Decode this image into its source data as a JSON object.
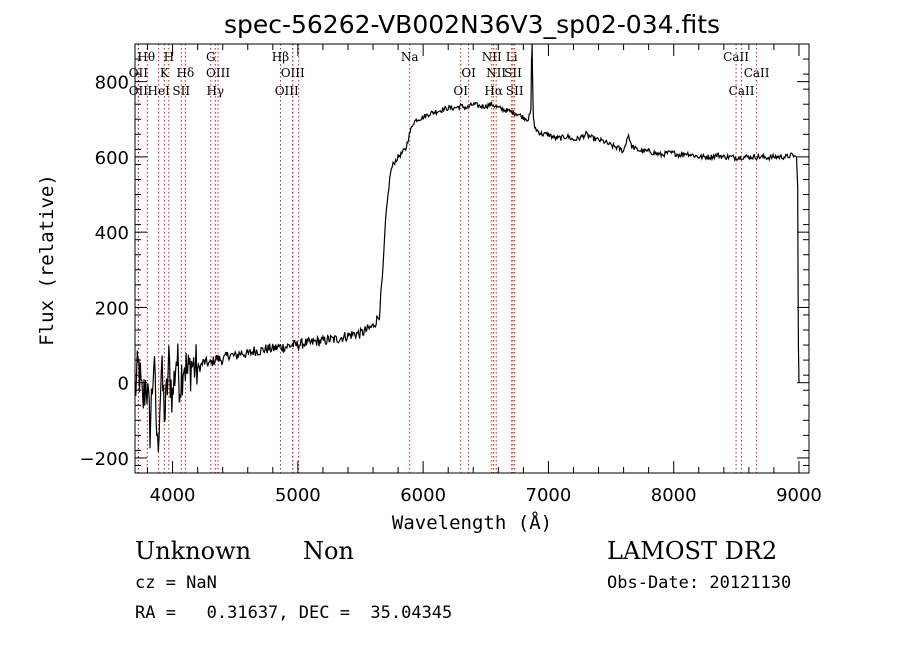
{
  "chart_data": {
    "type": "line",
    "title": "spec-56262-VB002N36V3_sp02-034.fits",
    "xlabel": "Wavelength (Å)",
    "ylabel": "Flux (relative)",
    "xlim": [
      3700,
      9080
    ],
    "ylim": [
      -240,
      900
    ],
    "xticks": [
      4000,
      5000,
      6000,
      7000,
      8000,
      9000
    ],
    "xtick_labels": [
      "4000",
      "5000",
      "6000",
      "7000",
      "8000",
      "9000"
    ],
    "yticks": [
      -200,
      0,
      200,
      400,
      600,
      800
    ],
    "ytick_labels": [
      "−200",
      "0",
      "200",
      "400",
      "600",
      "800"
    ],
    "grid": false,
    "series": [
      {
        "x": [
          3700,
          3730,
          3760,
          3790,
          3820,
          3850,
          3880,
          3910,
          3940,
          3970,
          4000,
          4030,
          4060,
          4090,
          4120,
          4150,
          4200,
          4250,
          4300,
          4350,
          4400,
          4450,
          4500,
          4550,
          4600,
          4650,
          4700,
          4750,
          4800,
          4850,
          4900,
          4950,
          5000,
          5050,
          5100,
          5150,
          5200,
          5250,
          5300,
          5350,
          5400,
          5450,
          5500,
          5550,
          5600,
          5650,
          5680,
          5700,
          5720,
          5740,
          5760,
          5780,
          5800,
          5830,
          5860,
          5890,
          5920,
          5950,
          6000,
          6050,
          6100,
          6150,
          6200,
          6250,
          6300,
          6350,
          6400,
          6450,
          6500,
          6550,
          6600,
          6650,
          6700,
          6750,
          6800,
          6840,
          6860,
          6865,
          6870,
          6875,
          6880,
          6890,
          6910,
          6950,
          7000,
          7050,
          7100,
          7150,
          7200,
          7250,
          7300,
          7350,
          7400,
          7450,
          7500,
          7550,
          7600,
          7620,
          7640,
          7660,
          7700,
          7750,
          7800,
          7850,
          7900,
          7950,
          8000,
          8050,
          8100,
          8150,
          8200,
          8250,
          8300,
          8350,
          8400,
          8450,
          8500,
          8550,
          8600,
          8650,
          8700,
          8750,
          8800,
          8850,
          8900,
          8950,
          8980,
          8990,
          8995,
          9000
        ],
        "y": [
          -20,
          40,
          -60,
          10,
          -120,
          60,
          -180,
          30,
          -90,
          50,
          -40,
          70,
          0,
          60,
          20,
          50,
          35,
          55,
          50,
          65,
          60,
          75,
          70,
          80,
          75,
          85,
          85,
          90,
          90,
          95,
          95,
          100,
          100,
          105,
          105,
          110,
          110,
          115,
          115,
          120,
          125,
          130,
          130,
          140,
          150,
          180,
          300,
          430,
          500,
          560,
          580,
          590,
          600,
          610,
          620,
          660,
          690,
          700,
          705,
          715,
          720,
          725,
          730,
          730,
          735,
          730,
          740,
          735,
          735,
          740,
          730,
          725,
          720,
          715,
          705,
          700,
          720,
          850,
          900,
          780,
          700,
          680,
          670,
          660,
          660,
          650,
          650,
          655,
          645,
          650,
          660,
          650,
          645,
          640,
          630,
          625,
          615,
          640,
          660,
          630,
          620,
          615,
          615,
          610,
          605,
          610,
          610,
          605,
          610,
          605,
          600,
          600,
          600,
          605,
          600,
          600,
          598,
          600,
          600,
          600,
          600,
          598,
          600,
          600,
          600,
          605,
          600,
          520,
          100,
          0
        ]
      }
    ],
    "lines": [
      {
        "name": "Hθ",
        "x": 3798,
        "rows": [
          1
        ],
        "dx": -1
      },
      {
        "name": "OII",
        "x": 3727,
        "rows": [
          2
        ],
        "dx": 0
      },
      {
        "name": "OII",
        "x": 3727,
        "rows": [
          3
        ],
        "dx": 0
      },
      {
        "name": "H",
        "x": 3970,
        "rows": [
          1
        ],
        "dx": 0
      },
      {
        "name": "K",
        "x": 3934,
        "rows": [
          2
        ],
        "dx": 0
      },
      {
        "name": "HeI",
        "x": 3889,
        "rows": [
          3
        ],
        "dx": 0
      },
      {
        "name": "Hδ",
        "x": 4102,
        "rows": [
          2
        ],
        "dx": 0
      },
      {
        "name": "SII",
        "x": 4069,
        "rows": [
          3
        ],
        "dx": 0
      },
      {
        "name": "G",
        "x": 4305,
        "rows": [
          1
        ],
        "dx": 0
      },
      {
        "name": "OIII",
        "x": 4363,
        "rows": [
          2
        ],
        "dx": 0
      },
      {
        "name": "Hγ",
        "x": 4341,
        "rows": [
          3
        ],
        "dx": 0
      },
      {
        "name": "Hβ",
        "x": 4861,
        "rows": [
          1
        ],
        "dx": 0
      },
      {
        "name": "OIII",
        "x": 4959,
        "rows": [
          2
        ],
        "dx": 0
      },
      {
        "name": "OIII",
        "x": 4959,
        "rows": [
          3
        ],
        "dx": -6
      },
      {
        "name": "",
        "x": 5007,
        "rows": [],
        "dx": 0
      },
      {
        "name": "Na",
        "x": 5893,
        "rows": [
          1
        ],
        "dx": 0
      },
      {
        "name": "OI",
        "x": 6363,
        "rows": [
          2
        ],
        "dx": 0
      },
      {
        "name": "OI",
        "x": 6300,
        "rows": [
          3
        ],
        "dx": 0
      },
      {
        "name": "NII",
        "x": 6548,
        "rows": [
          1
        ],
        "dx": 0
      },
      {
        "name": "NII",
        "x": 6583,
        "rows": [
          2
        ],
        "dx": 0
      },
      {
        "name": "Hα",
        "x": 6563,
        "rows": [
          3
        ],
        "dx": 0
      },
      {
        "name": "Li",
        "x": 6707,
        "rows": [
          1
        ],
        "dx": 0
      },
      {
        "name": "SII",
        "x": 6717,
        "rows": [
          2
        ],
        "dx": 0
      },
      {
        "name": "SII",
        "x": 6731,
        "rows": [
          3
        ],
        "dx": 0
      },
      {
        "name": "CaII",
        "x": 8498,
        "rows": [
          1
        ],
        "dx": 0
      },
      {
        "name": "CaII",
        "x": 8662,
        "rows": [
          2
        ],
        "dx": 0
      },
      {
        "name": "CaII",
        "x": 8542,
        "rows": [
          3
        ],
        "dx": 0
      }
    ]
  },
  "footer": {
    "object_class": "Unknown",
    "object_subclass": "Non",
    "survey": "LAMOST DR2",
    "redshift": "cz = NaN",
    "obs_date": "Obs-Date: 20121130",
    "coords": "RA =   0.31637, DEC =  35.04345"
  },
  "colors": {
    "spectrum": "#000000",
    "line_marker": "#cc0000",
    "axes": "#000000"
  }
}
